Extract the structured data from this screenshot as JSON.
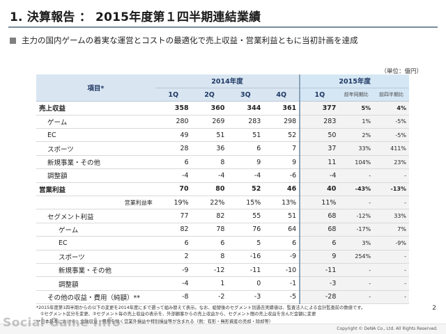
{
  "page": {
    "title": "1. 決算報告 ： 2015年度第１四半期連結業績",
    "subtitle": "主力の国内ゲームの着実な運営とコストの最適化で売上収益・営業利益ともに当初計画を達成",
    "unit": "（単位：億円）",
    "page_number": "2",
    "copyright": "Copyright © DeNA Co., Ltd. All Rights Reserved.",
    "watermark": "Social Game Info"
  },
  "table": {
    "header": {
      "item_label": "項目*",
      "fy2014": "2014年度",
      "fy2015": "2015年度",
      "quarters_2014": [
        "1Q",
        "2Q",
        "3Q",
        "4Q"
      ],
      "q1_2015": "1Q",
      "yoy_label": "前年同期比",
      "qoq_label": "前四半期比"
    },
    "rows": [
      {
        "label": "売上収益",
        "indent": 0,
        "bold": true,
        "values": [
          "358",
          "360",
          "344",
          "361"
        ],
        "q2015": "377",
        "yoy": "5%",
        "qoq": "4%"
      },
      {
        "label": "ゲーム",
        "indent": 1,
        "bold": false,
        "values": [
          "280",
          "269",
          "283",
          "298"
        ],
        "q2015": "283",
        "yoy": "1%",
        "qoq": "-5%"
      },
      {
        "label": "EC",
        "indent": 1,
        "bold": false,
        "values": [
          "49",
          "51",
          "51",
          "52"
        ],
        "q2015": "50",
        "yoy": "2%",
        "qoq": "-5%"
      },
      {
        "label": "スポーツ",
        "indent": 1,
        "bold": false,
        "values": [
          "28",
          "36",
          "6",
          "7"
        ],
        "q2015": "37",
        "yoy": "33%",
        "qoq": "411%"
      },
      {
        "label": "新規事業・その他",
        "indent": 1,
        "bold": false,
        "values": [
          "6",
          "8",
          "9",
          "9"
        ],
        "q2015": "11",
        "yoy": "104%",
        "qoq": "23%"
      },
      {
        "label": "調整額",
        "indent": 1,
        "bold": false,
        "values": [
          "-4",
          "-4",
          "-4",
          "-6"
        ],
        "q2015": "-4",
        "yoy": "-",
        "qoq": "-"
      },
      {
        "label": "営業利益",
        "indent": 0,
        "bold": true,
        "topline": true,
        "values": [
          "70",
          "80",
          "52",
          "46"
        ],
        "q2015": "40",
        "yoy": "-43%",
        "qoq": "-13%"
      },
      {
        "label": "営業利益率",
        "indent": -1,
        "bold": false,
        "small": true,
        "values": [
          "19%",
          "22%",
          "15%",
          "13%"
        ],
        "q2015": "11%",
        "yoy": "-",
        "qoq": "-"
      },
      {
        "label": "セグメント利益",
        "indent": 1,
        "bold": false,
        "values": [
          "77",
          "82",
          "55",
          "51"
        ],
        "q2015": "68",
        "yoy": "-12%",
        "qoq": "33%"
      },
      {
        "label": "ゲーム",
        "indent": 2,
        "bold": false,
        "values": [
          "82",
          "78",
          "76",
          "64"
        ],
        "q2015": "68",
        "yoy": "-17%",
        "qoq": "7%"
      },
      {
        "label": "EC",
        "indent": 2,
        "bold": false,
        "values": [
          "6",
          "6",
          "5",
          "6"
        ],
        "q2015": "6",
        "yoy": "3%",
        "qoq": "-9%"
      },
      {
        "label": "スポーツ",
        "indent": 2,
        "bold": false,
        "values": [
          "2",
          "8",
          "-16",
          "-9"
        ],
        "q2015": "9",
        "yoy": "254%",
        "qoq": "-"
      },
      {
        "label": "新規事業・その他",
        "indent": 2,
        "bold": false,
        "values": [
          "-9",
          "-12",
          "-11",
          "-10"
        ],
        "q2015": "-11",
        "yoy": "-",
        "qoq": "-"
      },
      {
        "label": "調整額",
        "indent": 2,
        "bold": false,
        "values": [
          "-4",
          "1",
          "0",
          "-1"
        ],
        "q2015": "-3",
        "yoy": "-",
        "qoq": "-"
      },
      {
        "label": "その他の収益・費用（純額）**",
        "indent": 1,
        "bold": false,
        "values": [
          "-8",
          "-2",
          "-3",
          "-5"
        ],
        "q2015": "-28",
        "yoy": "-",
        "qoq": "-"
      }
    ]
  },
  "footnotes": [
    "*2015年度第1四半期からの以下の変更を2014年度にまで遡って組み替えて表示。なお、組替後のセグメント別過去実績値は、監査法人による会計監査前の数値です。",
    "①セグメント区分を変更、②セグメント毎の売上収益の表示を、外部顧客からの売上収益から、セグメント間の売上収益を含んだ金額に変更",
    "**日本基準における、金融収益・費用を除く営業外損益や特別損益等が含まれる（例：有形・無形資産の売却・除却等）"
  ],
  "colors": {
    "header_bg": "#d9e6f2",
    "header_text": "#1f3864",
    "divider": "#8aa3b8",
    "bullet": "#7f7f7f"
  }
}
